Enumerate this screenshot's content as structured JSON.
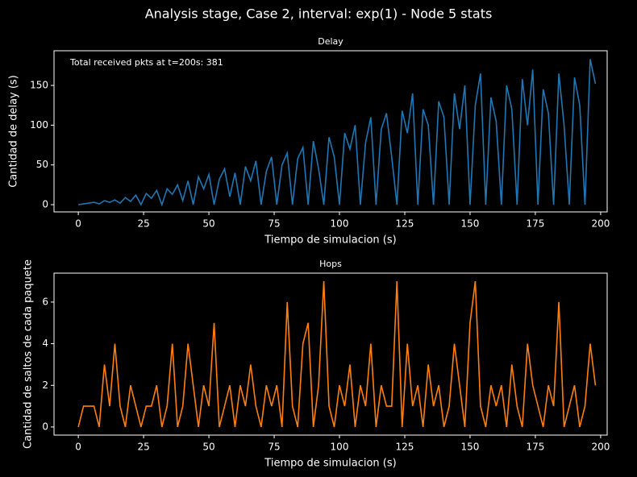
{
  "suptitle": "Analysis stage, Case 2, interval: exp(1) - Node 5 stats",
  "chart_data": [
    {
      "type": "line",
      "title": "Delay",
      "xlabel": "Tiempo de simulacion (s)",
      "ylabel": "Cantidad de delay (s)",
      "annotation": "Total received pkts at t=200s: 381",
      "x": [
        0,
        2,
        4,
        6,
        8,
        10,
        12,
        14,
        16,
        18,
        20,
        22,
        24,
        26,
        28,
        30,
        32,
        34,
        36,
        38,
        40,
        42,
        44,
        46,
        48,
        50,
        52,
        54,
        56,
        58,
        60,
        62,
        64,
        66,
        68,
        70,
        72,
        74,
        76,
        78,
        80,
        82,
        84,
        86,
        88,
        90,
        92,
        94,
        96,
        98,
        100,
        102,
        104,
        106,
        108,
        110,
        112,
        114,
        116,
        118,
        120,
        122,
        124,
        126,
        128,
        130,
        132,
        134,
        136,
        138,
        140,
        142,
        144,
        146,
        148,
        150,
        152,
        154,
        156,
        158,
        160,
        162,
        164,
        166,
        168,
        170,
        172,
        174,
        176,
        178,
        180,
        182,
        184,
        186,
        188,
        190,
        192,
        194,
        196,
        198
      ],
      "series": [
        {
          "color": "#1f77b4",
          "values": [
            0,
            1,
            2,
            3,
            1,
            5,
            3,
            6,
            2,
            9,
            4,
            12,
            0,
            14,
            8,
            18,
            0,
            20,
            13,
            25,
            5,
            30,
            0,
            35,
            20,
            38,
            0,
            32,
            45,
            10,
            40,
            0,
            48,
            30,
            55,
            0,
            42,
            60,
            0,
            50,
            65,
            0,
            58,
            72,
            0,
            80,
            45,
            0,
            85,
            60,
            0,
            90,
            70,
            100,
            0,
            78,
            110,
            0,
            95,
            115,
            60,
            0,
            118,
            90,
            140,
            0,
            120,
            100,
            0,
            130,
            110,
            0,
            140,
            95,
            150,
            0,
            125,
            165,
            0,
            135,
            105,
            0,
            150,
            120,
            0,
            158,
            100,
            170,
            0,
            145,
            115,
            0,
            165,
            100,
            0,
            160,
            125,
            0,
            183,
            152
          ]
        }
      ],
      "xlim": [
        -9.3,
        202.5
      ],
      "ylim": [
        -9.1,
        193.6
      ],
      "xticks": [
        0,
        25,
        50,
        75,
        100,
        125,
        150,
        175,
        200
      ],
      "yticks": [
        0,
        50,
        100,
        150
      ]
    },
    {
      "type": "line",
      "title": "Hops",
      "xlabel": "Tiempo de simulacion (s)",
      "ylabel": "Cantidad de saltos de cada paquete",
      "x": [
        0,
        2,
        4,
        6,
        8,
        10,
        12,
        14,
        16,
        18,
        20,
        22,
        24,
        26,
        28,
        30,
        32,
        34,
        36,
        38,
        40,
        42,
        44,
        46,
        48,
        50,
        52,
        54,
        56,
        58,
        60,
        62,
        64,
        66,
        68,
        70,
        72,
        74,
        76,
        78,
        80,
        82,
        84,
        86,
        88,
        90,
        92,
        94,
        96,
        98,
        100,
        102,
        104,
        106,
        108,
        110,
        112,
        114,
        116,
        118,
        120,
        122,
        124,
        126,
        128,
        130,
        132,
        134,
        136,
        138,
        140,
        142,
        144,
        146,
        148,
        150,
        152,
        154,
        156,
        158,
        160,
        162,
        164,
        166,
        168,
        170,
        172,
        174,
        176,
        178,
        180,
        182,
        184,
        186,
        188,
        190,
        192,
        194,
        196,
        198
      ],
      "series": [
        {
          "color": "#ff7f0e",
          "values": [
            0,
            1,
            1,
            1,
            0,
            3,
            1,
            4,
            1,
            0,
            2,
            1,
            0,
            1,
            1,
            2,
            0,
            1,
            4,
            0,
            1,
            4,
            2,
            0,
            2,
            1,
            5,
            0,
            1,
            2,
            0,
            2,
            1,
            3,
            1,
            0,
            2,
            1,
            2,
            0,
            6,
            1,
            0,
            4,
            5,
            0,
            2,
            7,
            1,
            0,
            2,
            1,
            3,
            0,
            2,
            1,
            4,
            0,
            2,
            1,
            1,
            7,
            0,
            4,
            1,
            2,
            0,
            3,
            1,
            2,
            0,
            1,
            4,
            2,
            0,
            5,
            7,
            1,
            0,
            2,
            1,
            2,
            0,
            3,
            1,
            0,
            4,
            2,
            1,
            0,
            2,
            1,
            6,
            0,
            1,
            2,
            0,
            1,
            4,
            2
          ]
        }
      ],
      "xlim": [
        -9.3,
        202.5
      ],
      "ylim": [
        -0.39,
        7.39
      ],
      "xticks": [
        0,
        25,
        50,
        75,
        100,
        125,
        150,
        175,
        200
      ],
      "yticks": [
        0,
        2,
        4,
        6
      ]
    }
  ]
}
